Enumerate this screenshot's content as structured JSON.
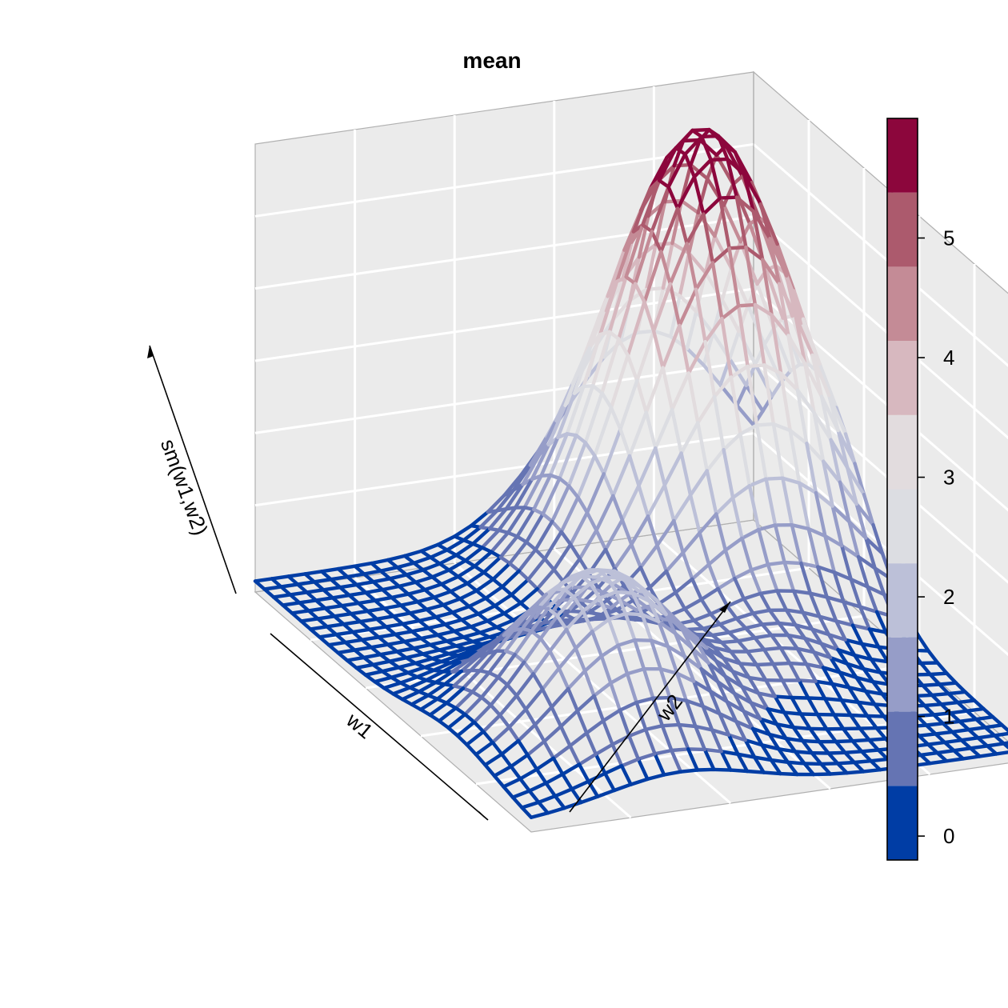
{
  "chart_data": {
    "type": "surface",
    "title": "mean",
    "xlabel": "w1",
    "ylabel": "w2",
    "zlabel": "sm(w1,w2)",
    "zlim": [
      -0.2,
      6.0
    ],
    "surface": {
      "grid_size": 30,
      "description_values": {
        "peak_height": 5.8,
        "secondary_peak_height": 2.5,
        "base_level": 0.0
      }
    },
    "colorkey": {
      "breaks": [
        -0.2,
        0.42,
        1.04,
        1.66,
        2.28,
        2.9,
        3.52,
        4.14,
        4.76,
        5.38,
        6.0
      ],
      "colors": [
        "#003DA5",
        "#6574B3",
        "#969DC8",
        "#BCC0D8",
        "#DCDDE2",
        "#E2DCDE",
        "#D7B8BF",
        "#C48B96",
        "#AC5A6D",
        "#8C063C"
      ],
      "ticks": [
        0,
        1,
        2,
        3,
        4,
        5
      ],
      "tick_labels": [
        "0",
        "1",
        "2",
        "3",
        "4",
        "5"
      ]
    },
    "panel_background": "#EBEBEB",
    "grid_color": "#FFFFFF",
    "grid": true,
    "legend_position": "right"
  }
}
